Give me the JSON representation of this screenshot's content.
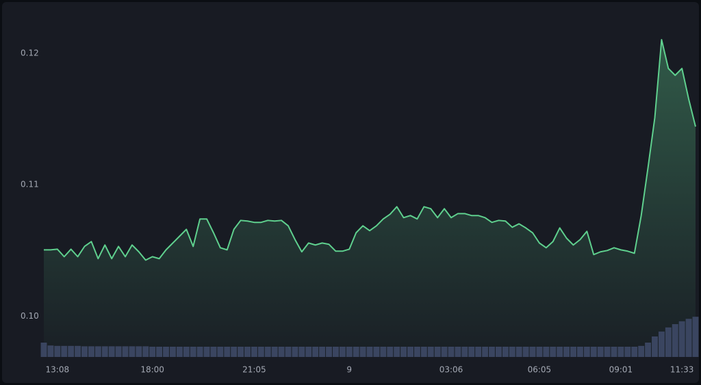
{
  "chart_data": {
    "type": "line",
    "categories": [
      null,
      null,
      "13:08",
      null,
      null,
      null,
      null,
      null,
      null,
      null,
      null,
      null,
      null,
      null,
      null,
      null,
      "18:00",
      null,
      null,
      null,
      null,
      null,
      null,
      null,
      null,
      null,
      null,
      null,
      null,
      null,
      null,
      "21:05",
      null,
      null,
      null,
      null,
      null,
      null,
      null,
      null,
      null,
      null,
      null,
      null,
      null,
      "9",
      null,
      null,
      null,
      null,
      null,
      null,
      null,
      null,
      null,
      null,
      null,
      null,
      null,
      null,
      "03:06",
      null,
      null,
      null,
      null,
      null,
      null,
      null,
      null,
      null,
      null,
      null,
      null,
      "06:05",
      null,
      null,
      null,
      null,
      null,
      null,
      null,
      null,
      null,
      null,
      null,
      "09:01",
      null,
      null,
      null,
      null,
      null,
      null,
      null,
      null,
      "11:33",
      null,
      null
    ],
    "series": [
      {
        "name": "price",
        "color": "#5fd08e",
        "values": [
          0.10505,
          0.10505,
          0.1051,
          0.10453,
          0.1051,
          0.10453,
          0.10531,
          0.10568,
          0.10438,
          0.10542,
          0.10438,
          0.10531,
          0.10453,
          0.10542,
          0.1049,
          0.10427,
          0.10453,
          0.10438,
          0.10505,
          0.10557,
          0.10609,
          0.10661,
          0.10531,
          0.1074,
          0.1074,
          0.10635,
          0.10521,
          0.10505,
          0.10661,
          0.10729,
          0.10724,
          0.10714,
          0.10714,
          0.10729,
          0.10724,
          0.10729,
          0.10688,
          0.10583,
          0.1049,
          0.10557,
          0.10542,
          0.10557,
          0.10547,
          0.10495,
          0.10495,
          0.1051,
          0.10635,
          0.10688,
          0.10651,
          0.10688,
          0.1074,
          0.10776,
          0.10833,
          0.1075,
          0.10766,
          0.1074,
          0.10833,
          0.10818,
          0.1075,
          0.10818,
          0.1075,
          0.10781,
          0.10781,
          0.10766,
          0.10766,
          0.1075,
          0.10714,
          0.10729,
          0.10724,
          0.10677,
          0.10703,
          0.10672,
          0.10635,
          0.10557,
          0.10521,
          0.10568,
          0.10672,
          0.10594,
          0.10542,
          0.10583,
          0.10646,
          0.10469,
          0.1049,
          0.105,
          0.10521,
          0.10505,
          0.10495,
          0.10479,
          0.10766,
          0.1113,
          0.1151,
          0.12104,
          0.11885,
          0.11833,
          0.11885,
          0.11651,
          0.11443
        ]
      },
      {
        "name": "volume",
        "color": "#3a4560",
        "axis": "y2",
        "values": [
          35,
          28,
          27,
          27,
          27,
          27,
          26,
          26,
          26,
          26,
          26,
          26,
          26,
          26,
          26,
          26,
          25,
          25,
          25,
          25,
          25,
          25,
          25,
          25,
          25,
          25,
          25,
          25,
          25,
          25,
          25,
          25,
          25,
          25,
          25,
          25,
          25,
          25,
          25,
          25,
          25,
          25,
          25,
          25,
          25,
          25,
          25,
          25,
          25,
          25,
          25,
          25,
          25,
          25,
          25,
          25,
          25,
          25,
          25,
          25,
          25,
          25,
          25,
          25,
          25,
          25,
          25,
          25,
          25,
          25,
          25,
          25,
          25,
          25,
          25,
          25,
          25,
          25,
          25,
          25,
          25,
          25,
          25,
          25,
          25,
          25,
          25,
          25,
          27,
          35,
          50,
          62,
          72,
          80,
          87,
          93,
          98
        ]
      }
    ],
    "ylim": [
      0.0969,
      0.1238
    ],
    "yticks": [
      {
        "value": 0.1,
        "label": "0.10"
      },
      0.11,
      0.12
    ],
    "y2lim": [
      0,
      100
    ]
  }
}
